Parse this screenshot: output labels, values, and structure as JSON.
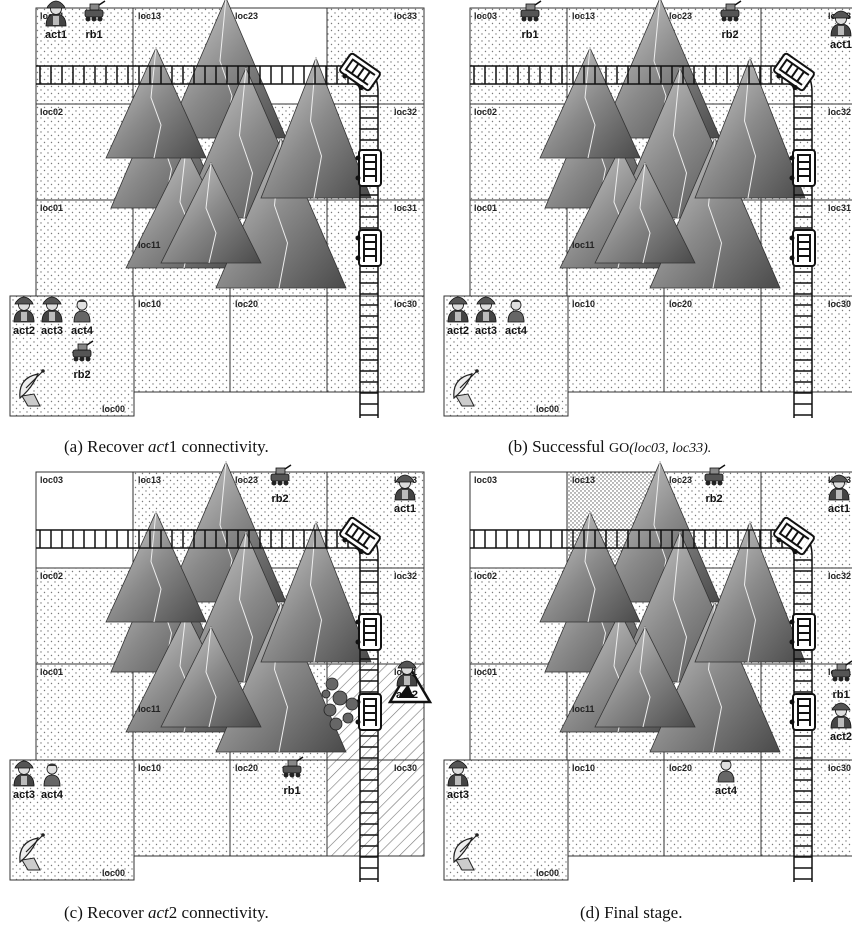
{
  "panels": [
    {
      "id": "a",
      "loc_labels": [
        "loc03",
        "loc13",
        "loc23",
        "loc33",
        "loc02",
        "loc32",
        "loc01",
        "loc31",
        "loc11",
        "loc10",
        "loc20",
        "loc30",
        "loc00"
      ],
      "hatched_cells": [],
      "dense_cells": [],
      "blank_cells": [
        "loc23"
      ],
      "obstacle_at_loc31": false,
      "agents": [
        {
          "label": "act1",
          "kind": "firefighter",
          "cell": "loc03"
        },
        {
          "label": "rb1",
          "kind": "robot",
          "cell": "loc03"
        },
        {
          "label": "act2",
          "kind": "firefighter",
          "cell": "loc00"
        },
        {
          "label": "act3",
          "kind": "firefighter",
          "cell": "loc00"
        },
        {
          "label": "act4",
          "kind": "person",
          "cell": "loc00"
        },
        {
          "label": "rb2",
          "kind": "robot",
          "cell": "loc00"
        }
      ],
      "caption": {
        "prefix": "(a) Recover ",
        "var": "act",
        "num": "1",
        "suffix": " connectivity."
      }
    },
    {
      "id": "b",
      "loc_labels": [
        "loc03",
        "loc13",
        "loc23",
        "loc33",
        "loc02",
        "loc32",
        "loc01",
        "loc31",
        "loc11",
        "loc10",
        "loc20",
        "loc30",
        "loc00"
      ],
      "hatched_cells": [],
      "dense_cells": [],
      "blank_cells": [],
      "obstacle_at_loc31": false,
      "agents": [
        {
          "label": "rb1",
          "kind": "robot",
          "cell": "loc03"
        },
        {
          "label": "rb2",
          "kind": "robot",
          "cell": "loc23"
        },
        {
          "label": "act1",
          "kind": "firefighter",
          "cell": "loc33"
        },
        {
          "label": "act2",
          "kind": "firefighter",
          "cell": "loc00"
        },
        {
          "label": "act3",
          "kind": "firefighter",
          "cell": "loc00"
        },
        {
          "label": "act4",
          "kind": "person",
          "cell": "loc00"
        }
      ],
      "caption": {
        "prefix": "(b) Successful ",
        "go": "GO",
        "args": "(loc03, loc33)."
      }
    },
    {
      "id": "c",
      "loc_labels": [
        "loc03",
        "loc13",
        "loc23",
        "loc33",
        "loc02",
        "loc32",
        "loc01",
        "loc31",
        "loc11",
        "loc10",
        "loc20",
        "loc30",
        "loc00"
      ],
      "hatched_cells": [
        "loc31",
        "loc30"
      ],
      "dense_cells": [],
      "blank_cells": [
        "loc03"
      ],
      "obstacle_at_loc31": true,
      "agents": [
        {
          "label": "rb2",
          "kind": "robot",
          "cell": "loc23"
        },
        {
          "label": "act1",
          "kind": "firefighter",
          "cell": "loc33"
        },
        {
          "label": "act2",
          "kind": "firefighter",
          "cell": "loc31"
        },
        {
          "label": "rb1",
          "kind": "robot",
          "cell": "loc20"
        },
        {
          "label": "act3",
          "kind": "firefighter",
          "cell": "loc00"
        },
        {
          "label": "act4",
          "kind": "person",
          "cell": "loc00"
        }
      ],
      "caption": {
        "prefix": "(c) Recover ",
        "var": "act",
        "num": "2",
        "suffix": " connectivity."
      }
    },
    {
      "id": "d",
      "loc_labels": [
        "loc03",
        "loc13",
        "loc23",
        "loc33",
        "loc02",
        "loc32",
        "loc01",
        "loc31",
        "loc11",
        "loc10",
        "loc20",
        "loc30",
        "loc00"
      ],
      "hatched_cells": [],
      "dense_cells": [
        "loc13"
      ],
      "blank_cells": [
        "loc03"
      ],
      "obstacle_at_loc31": false,
      "agents": [
        {
          "label": "rb2",
          "kind": "robot",
          "cell": "loc23"
        },
        {
          "label": "act1",
          "kind": "firefighter",
          "cell": "loc33"
        },
        {
          "label": "rb1",
          "kind": "robot",
          "cell": "loc31"
        },
        {
          "label": "act2",
          "kind": "firefighter",
          "cell": "loc31"
        },
        {
          "label": "act3",
          "kind": "firefighter",
          "cell": "loc00"
        },
        {
          "label": "act4",
          "kind": "person",
          "cell": "loc20"
        }
      ],
      "caption": {
        "prefix": "(d) Final stage.",
        "var": "",
        "num": "",
        "suffix": ""
      }
    }
  ]
}
